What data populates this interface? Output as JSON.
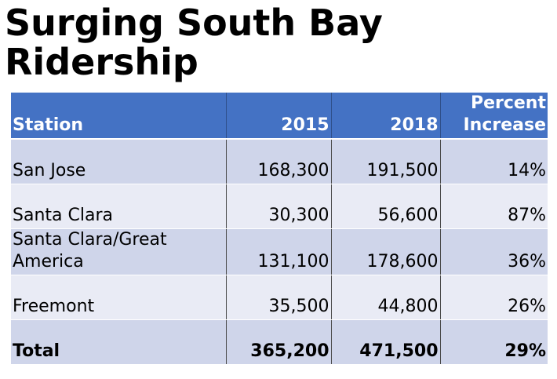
{
  "title": {
    "line1": "Surging South Bay",
    "line2": "Ridership"
  },
  "table": {
    "headers": [
      "Station",
      "2015",
      "2018",
      "Percent Increase"
    ],
    "header_percent_line1": "Percent",
    "header_percent_line2": "Increase",
    "rows": [
      {
        "station": "San Jose",
        "y2015": "168,300",
        "y2018": "191,500",
        "pct": "14%"
      },
      {
        "station": "Santa Clara",
        "y2015": "30,300",
        "y2018": "56,600",
        "pct": "87%"
      },
      {
        "station": "Santa Clara/Great America",
        "y2015": "131,100",
        "y2018": "178,600",
        "pct": "36%"
      },
      {
        "station": "Freemont",
        "y2015": "35,500",
        "y2018": "44,800",
        "pct": "26%"
      }
    ],
    "total": {
      "station": "Total",
      "y2015": "365,200",
      "y2018": "471,500",
      "pct": "29%"
    }
  },
  "colors": {
    "header_bg": "#4472c4",
    "row_dark": "#cfd5ea",
    "row_light": "#e9ebf5"
  }
}
